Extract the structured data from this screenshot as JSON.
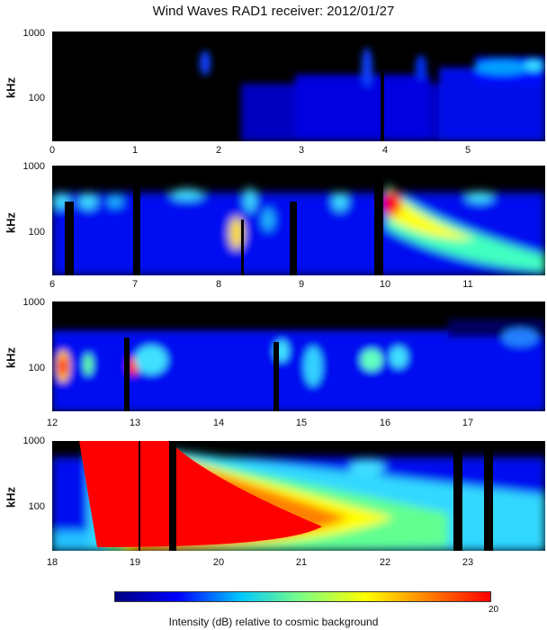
{
  "chart_data": {
    "type": "heatmap",
    "title": "Wind Waves RAD1 receiver: 2012/01/27",
    "ylabel": "kHz",
    "yticks": [
      "1000",
      "100"
    ],
    "colorbar": {
      "label": "Intensity (dB) relative to cosmic background",
      "max_label": "20",
      "colors": [
        "#000080",
        "#0000ff",
        "#00c8ff",
        "#80ff80",
        "#ffff00",
        "#ff8000",
        "#ff0000"
      ]
    },
    "panels": [
      {
        "x_start": 0,
        "x_ticks": [
          "0",
          "1",
          "2",
          "3",
          "4",
          "5"
        ]
      },
      {
        "x_start": 6,
        "x_ticks": [
          "6",
          "7",
          "8",
          "9",
          "10",
          "11"
        ]
      },
      {
        "x_start": 12,
        "x_ticks": [
          "12",
          "13",
          "14",
          "15",
          "16",
          "17"
        ]
      },
      {
        "x_start": 18,
        "x_ticks": [
          "18",
          "19",
          "20",
          "21",
          "22",
          "23"
        ]
      }
    ]
  }
}
